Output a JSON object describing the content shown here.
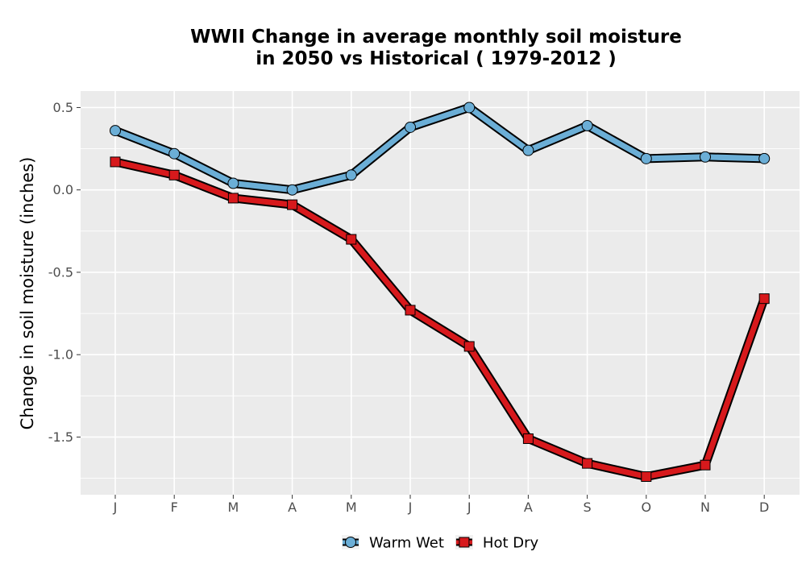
{
  "chart_data": {
    "type": "line",
    "title_line1": "WWII  Change in average monthly soil moisture",
    "title_line2": "in 2050 vs Historical ( 1979-2012 )",
    "xlabel": "",
    "ylabel": "Change in soil moisture (inches)",
    "categories": [
      "J",
      "F",
      "M",
      "A",
      "M",
      "J",
      "J",
      "A",
      "S",
      "O",
      "N",
      "D"
    ],
    "y_ticks": [
      0.5,
      0.0,
      -0.5,
      -1.0,
      -1.5
    ],
    "y_tick_labels": [
      "0.5",
      "0.0",
      "-0.5",
      "-1.0",
      "-1.5"
    ],
    "ylim": [
      -1.85,
      0.6
    ],
    "grid": true,
    "legend_position": "bottom",
    "series": [
      {
        "name": "Warm Wet",
        "marker": "circle",
        "color": "#6baed6",
        "values": [
          0.36,
          0.22,
          0.04,
          0.0,
          0.09,
          0.38,
          0.5,
          0.24,
          0.39,
          0.19,
          0.2,
          0.19
        ]
      },
      {
        "name": "Hot Dry",
        "marker": "square",
        "color": "#d7191c",
        "values": [
          0.17,
          0.09,
          -0.05,
          -0.09,
          -0.3,
          -0.73,
          -0.95,
          -1.51,
          -1.66,
          -1.74,
          -1.67,
          -0.66
        ]
      }
    ]
  }
}
